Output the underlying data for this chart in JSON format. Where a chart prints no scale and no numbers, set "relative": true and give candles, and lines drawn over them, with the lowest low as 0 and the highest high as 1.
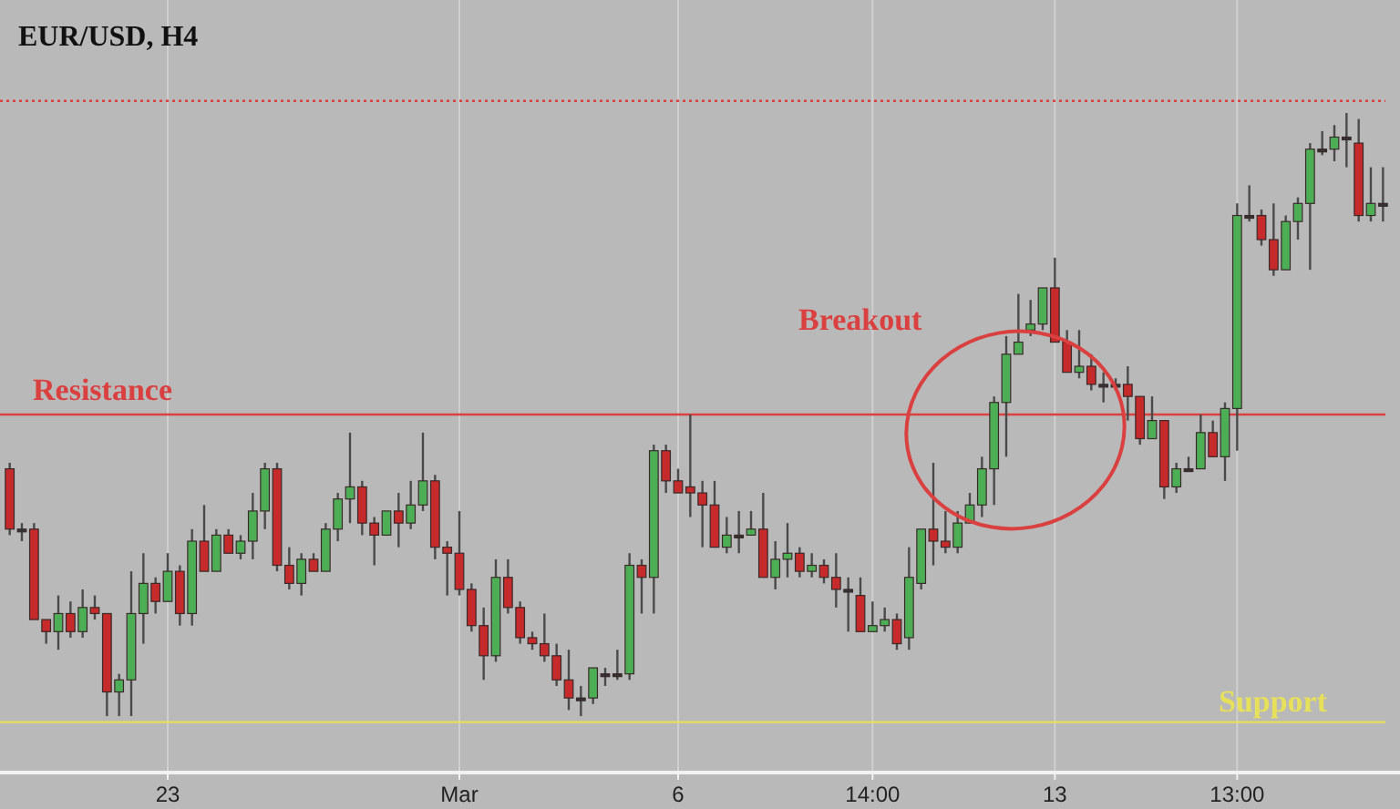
{
  "chart_data": {
    "type": "candlestick",
    "title": "EUR/USD, H4",
    "relative": true,
    "grid": "x",
    "categories": [
      null,
      null,
      null,
      null,
      null,
      null,
      null,
      null,
      null,
      null,
      null,
      null,
      null,
      "23",
      null,
      null,
      null,
      null,
      null,
      null,
      null,
      null,
      null,
      null,
      null,
      null,
      null,
      null,
      null,
      null,
      null,
      null,
      null,
      null,
      null,
      null,
      null,
      "Mar",
      null,
      null,
      null,
      null,
      null,
      null,
      null,
      null,
      null,
      null,
      null,
      null,
      null,
      null,
      null,
      null,
      null,
      "6",
      null,
      null,
      null,
      null,
      null,
      null,
      null,
      null,
      null,
      null,
      null,
      null,
      null,
      null,
      null,
      "14:00",
      null,
      null,
      null,
      null,
      null,
      null,
      null,
      null,
      null,
      null,
      null,
      null,
      null,
      null,
      "13",
      null,
      null,
      null,
      null,
      null,
      null,
      null,
      null,
      null,
      null,
      null,
      null,
      null,
      null,
      "13:00",
      null,
      null,
      null,
      null,
      null,
      null,
      null,
      null,
      null,
      null,
      null,
      null
    ],
    "ohlc": [
      [
        0.41,
        0.42,
        0.3,
        0.31
      ],
      [
        0.31,
        0.32,
        0.29,
        0.31
      ],
      [
        0.31,
        0.32,
        0.16,
        0.16
      ],
      [
        0.16,
        0.16,
        0.12,
        0.14
      ],
      [
        0.14,
        0.2,
        0.11,
        0.17
      ],
      [
        0.17,
        0.19,
        0.13,
        0.14
      ],
      [
        0.14,
        0.21,
        0.13,
        0.18
      ],
      [
        0.18,
        0.2,
        0.16,
        0.17
      ],
      [
        0.17,
        0.17,
        0.0,
        0.04
      ],
      [
        0.04,
        0.07,
        0.0,
        0.06
      ],
      [
        0.06,
        0.24,
        0.0,
        0.17
      ],
      [
        0.17,
        0.27,
        0.12,
        0.22
      ],
      [
        0.22,
        0.23,
        0.17,
        0.19
      ],
      [
        0.19,
        0.27,
        0.19,
        0.24
      ],
      [
        0.24,
        0.25,
        0.15,
        0.17
      ],
      [
        0.17,
        0.31,
        0.15,
        0.29
      ],
      [
        0.29,
        0.35,
        0.24,
        0.24
      ],
      [
        0.24,
        0.31,
        0.24,
        0.3
      ],
      [
        0.3,
        0.31,
        0.27,
        0.27
      ],
      [
        0.27,
        0.3,
        0.26,
        0.29
      ],
      [
        0.29,
        0.37,
        0.26,
        0.34
      ],
      [
        0.34,
        0.42,
        0.31,
        0.41
      ],
      [
        0.41,
        0.42,
        0.24,
        0.25
      ],
      [
        0.25,
        0.28,
        0.21,
        0.22
      ],
      [
        0.22,
        0.27,
        0.2,
        0.26
      ],
      [
        0.26,
        0.27,
        0.24,
        0.24
      ],
      [
        0.24,
        0.32,
        0.24,
        0.31
      ],
      [
        0.31,
        0.37,
        0.29,
        0.36
      ],
      [
        0.36,
        0.47,
        0.32,
        0.38
      ],
      [
        0.38,
        0.39,
        0.3,
        0.32
      ],
      [
        0.32,
        0.33,
        0.25,
        0.3
      ],
      [
        0.3,
        0.34,
        0.3,
        0.34
      ],
      [
        0.34,
        0.37,
        0.28,
        0.32
      ],
      [
        0.32,
        0.39,
        0.31,
        0.35
      ],
      [
        0.35,
        0.47,
        0.34,
        0.39
      ],
      [
        0.39,
        0.4,
        0.26,
        0.28
      ],
      [
        0.28,
        0.29,
        0.2,
        0.27
      ],
      [
        0.27,
        0.34,
        0.2,
        0.21
      ],
      [
        0.21,
        0.22,
        0.14,
        0.15
      ],
      [
        0.15,
        0.18,
        0.06,
        0.1
      ],
      [
        0.1,
        0.26,
        0.09,
        0.23
      ],
      [
        0.23,
        0.26,
        0.17,
        0.18
      ],
      [
        0.18,
        0.19,
        0.12,
        0.13
      ],
      [
        0.13,
        0.14,
        0.11,
        0.12
      ],
      [
        0.12,
        0.17,
        0.09,
        0.1
      ],
      [
        0.1,
        0.12,
        0.05,
        0.06
      ],
      [
        0.06,
        0.11,
        0.01,
        0.03
      ],
      [
        0.03,
        0.05,
        0.0,
        0.03
      ],
      [
        0.03,
        0.08,
        0.02,
        0.08
      ],
      [
        0.07,
        0.08,
        0.05,
        0.07
      ],
      [
        0.07,
        0.11,
        0.06,
        0.07
      ],
      [
        0.07,
        0.27,
        0.06,
        0.25
      ],
      [
        0.25,
        0.26,
        0.17,
        0.23
      ],
      [
        0.23,
        0.45,
        0.17,
        0.44
      ],
      [
        0.44,
        0.45,
        0.37,
        0.39
      ],
      [
        0.39,
        0.41,
        0.37,
        0.37
      ],
      [
        0.38,
        0.5,
        0.33,
        0.37
      ],
      [
        0.37,
        0.39,
        0.28,
        0.35
      ],
      [
        0.35,
        0.39,
        0.28,
        0.28
      ],
      [
        0.28,
        0.33,
        0.27,
        0.3
      ],
      [
        0.3,
        0.34,
        0.27,
        0.3
      ],
      [
        0.3,
        0.34,
        0.3,
        0.31
      ],
      [
        0.31,
        0.37,
        0.23,
        0.23
      ],
      [
        0.23,
        0.29,
        0.21,
        0.26
      ],
      [
        0.26,
        0.32,
        0.23,
        0.27
      ],
      [
        0.27,
        0.28,
        0.23,
        0.24
      ],
      [
        0.24,
        0.27,
        0.23,
        0.25
      ],
      [
        0.25,
        0.26,
        0.22,
        0.23
      ],
      [
        0.23,
        0.27,
        0.18,
        0.21
      ],
      [
        0.21,
        0.23,
        0.14,
        0.21
      ],
      [
        0.2,
        0.23,
        0.14,
        0.14
      ],
      [
        0.14,
        0.19,
        0.14,
        0.15
      ],
      [
        0.15,
        0.18,
        0.14,
        0.16
      ],
      [
        0.16,
        0.17,
        0.11,
        0.12
      ],
      [
        0.13,
        0.28,
        0.11,
        0.23
      ],
      [
        0.22,
        0.31,
        0.21,
        0.31
      ],
      [
        0.31,
        0.42,
        0.25,
        0.29
      ],
      [
        0.29,
        0.34,
        0.27,
        0.28
      ],
      [
        0.28,
        0.34,
        0.27,
        0.32
      ],
      [
        0.32,
        0.37,
        0.32,
        0.35
      ],
      [
        0.35,
        0.43,
        0.33,
        0.41
      ],
      [
        0.41,
        0.53,
        0.35,
        0.52
      ],
      [
        0.52,
        0.63,
        0.43,
        0.6
      ],
      [
        0.6,
        0.7,
        0.6,
        0.62
      ],
      [
        0.64,
        0.69,
        0.63,
        0.65
      ],
      [
        0.65,
        0.71,
        0.64,
        0.71
      ],
      [
        0.71,
        0.76,
        0.62,
        0.62
      ],
      [
        0.62,
        0.64,
        0.57,
        0.57
      ],
      [
        0.57,
        0.64,
        0.56,
        0.58
      ],
      [
        0.58,
        0.6,
        0.54,
        0.55
      ],
      [
        0.55,
        0.57,
        0.52,
        0.55
      ],
      [
        0.55,
        0.56,
        0.54,
        0.55
      ],
      [
        0.55,
        0.58,
        0.49,
        0.53
      ],
      [
        0.53,
        0.53,
        0.45,
        0.46
      ],
      [
        0.46,
        0.53,
        0.46,
        0.49
      ],
      [
        0.49,
        0.49,
        0.36,
        0.38
      ],
      [
        0.38,
        0.42,
        0.37,
        0.41
      ],
      [
        0.41,
        0.43,
        0.41,
        0.41
      ],
      [
        0.41,
        0.5,
        0.41,
        0.47
      ],
      [
        0.47,
        0.49,
        0.43,
        0.43
      ],
      [
        0.43,
        0.52,
        0.39,
        0.51
      ],
      [
        0.51,
        0.85,
        0.44,
        0.83
      ],
      [
        0.83,
        0.88,
        0.82,
        0.83
      ],
      [
        0.83,
        0.84,
        0.78,
        0.79
      ],
      [
        0.79,
        0.85,
        0.73,
        0.74
      ],
      [
        0.74,
        0.83,
        0.74,
        0.82
      ],
      [
        0.82,
        0.86,
        0.79,
        0.85
      ],
      [
        0.85,
        0.95,
        0.74,
        0.94
      ],
      [
        0.94,
        0.97,
        0.93,
        0.94
      ],
      [
        0.94,
        0.98,
        0.92,
        0.96
      ],
      [
        0.96,
        1.0,
        0.91,
        0.96
      ],
      [
        0.95,
        0.99,
        0.82,
        0.83
      ],
      [
        0.83,
        0.91,
        0.82,
        0.85
      ],
      [
        0.85,
        0.91,
        0.82,
        0.85
      ]
    ],
    "ref_lines": [
      {
        "axis": "y",
        "value": 0.5,
        "label": "Resistance",
        "color": "#d9403f"
      },
      {
        "axis": "y",
        "value": -0.01,
        "label": "Support",
        "color": "#e6e05a"
      },
      {
        "axis": "y",
        "value": 1.02,
        "color": "#d9403f",
        "line_style": "dotted"
      }
    ],
    "annotations": [
      "Breakout"
    ]
  }
}
